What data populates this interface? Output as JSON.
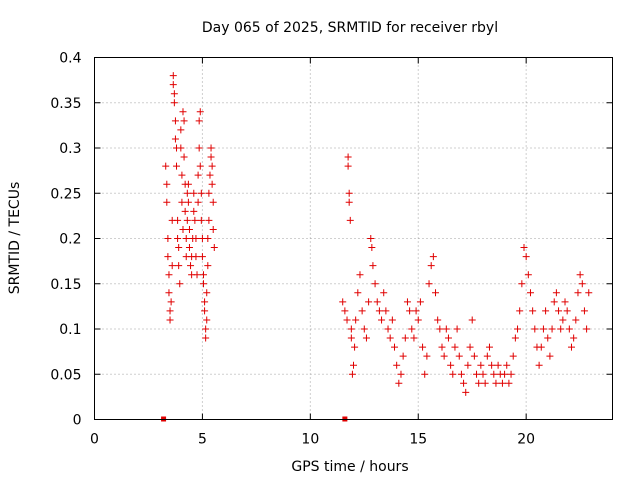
{
  "chart_data": {
    "type": "scatter",
    "title": "Day 065 of 2025, SRMTID for receiver rbyl",
    "xlabel": "GPS time / hours",
    "ylabel": "SRMTID / TECUs",
    "xlim": [
      0,
      24
    ],
    "ylim": [
      0,
      0.4
    ],
    "xticks": [
      0,
      5,
      10,
      15,
      20
    ],
    "yticks": [
      0,
      0.05,
      0.1,
      0.15,
      0.2,
      0.25,
      0.3,
      0.35,
      0.4
    ],
    "xtick_labels": [
      "0",
      "5",
      "10",
      "15",
      "20"
    ],
    "ytick_labels": [
      "0",
      "0.05",
      "0.1",
      "0.15",
      "0.2",
      "0.25",
      "0.3",
      "0.35",
      "0.4"
    ],
    "grid": true,
    "marker": "+",
    "marker_color": "#e00000",
    "series": [
      {
        "name": "",
        "points": [
          [
            3.3,
            0.28
          ],
          [
            3.35,
            0.26
          ],
          [
            3.35,
            0.24
          ],
          [
            3.4,
            0.2
          ],
          [
            3.4,
            0.18
          ],
          [
            3.45,
            0.16
          ],
          [
            3.45,
            0.14
          ],
          [
            3.5,
            0.12
          ],
          [
            3.5,
            0.11
          ],
          [
            3.55,
            0.13
          ],
          [
            3.6,
            0.17
          ],
          [
            3.6,
            0.22
          ],
          [
            3.65,
            0.38
          ],
          [
            3.65,
            0.37
          ],
          [
            3.7,
            0.36
          ],
          [
            3.7,
            0.35
          ],
          [
            3.75,
            0.33
          ],
          [
            3.75,
            0.31
          ],
          [
            3.8,
            0.3
          ],
          [
            3.8,
            0.28
          ],
          [
            3.85,
            0.22
          ],
          [
            3.85,
            0.2
          ],
          [
            3.9,
            0.19
          ],
          [
            3.9,
            0.17
          ],
          [
            3.95,
            0.15
          ],
          [
            4.0,
            0.32
          ],
          [
            4.0,
            0.3
          ],
          [
            4.05,
            0.27
          ],
          [
            4.05,
            0.24
          ],
          [
            4.1,
            0.21
          ],
          [
            4.1,
            0.34
          ],
          [
            4.15,
            0.33
          ],
          [
            4.15,
            0.29
          ],
          [
            4.2,
            0.26
          ],
          [
            4.2,
            0.23
          ],
          [
            4.25,
            0.2
          ],
          [
            4.25,
            0.18
          ],
          [
            4.3,
            0.22
          ],
          [
            4.3,
            0.25
          ],
          [
            4.35,
            0.26
          ],
          [
            4.35,
            0.24
          ],
          [
            4.4,
            0.21
          ],
          [
            4.4,
            0.19
          ],
          [
            4.45,
            0.17
          ],
          [
            4.5,
            0.16
          ],
          [
            4.5,
            0.18
          ],
          [
            4.55,
            0.2
          ],
          [
            4.6,
            0.23
          ],
          [
            4.6,
            0.25
          ],
          [
            4.65,
            0.22
          ],
          [
            4.7,
            0.2
          ],
          [
            4.7,
            0.18
          ],
          [
            4.75,
            0.16
          ],
          [
            4.8,
            0.24
          ],
          [
            4.8,
            0.27
          ],
          [
            4.85,
            0.3
          ],
          [
            4.85,
            0.33
          ],
          [
            4.9,
            0.34
          ],
          [
            4.9,
            0.28
          ],
          [
            4.95,
            0.25
          ],
          [
            4.95,
            0.22
          ],
          [
            5.0,
            0.2
          ],
          [
            5.0,
            0.18
          ],
          [
            5.05,
            0.16
          ],
          [
            5.05,
            0.15
          ],
          [
            5.1,
            0.13
          ],
          [
            5.1,
            0.12
          ],
          [
            5.15,
            0.1
          ],
          [
            5.15,
            0.09
          ],
          [
            5.2,
            0.11
          ],
          [
            5.2,
            0.14
          ],
          [
            5.25,
            0.17
          ],
          [
            5.25,
            0.2
          ],
          [
            5.3,
            0.22
          ],
          [
            5.3,
            0.25
          ],
          [
            5.35,
            0.27
          ],
          [
            5.4,
            0.29
          ],
          [
            5.4,
            0.3
          ],
          [
            5.45,
            0.28
          ],
          [
            5.45,
            0.26
          ],
          [
            5.5,
            0.24
          ],
          [
            5.5,
            0.21
          ],
          [
            5.55,
            0.19
          ],
          [
            11.5,
            0.13
          ],
          [
            11.6,
            0.12
          ],
          [
            11.7,
            0.11
          ],
          [
            11.75,
            0.29
          ],
          [
            11.75,
            0.28
          ],
          [
            11.8,
            0.25
          ],
          [
            11.8,
            0.24
          ],
          [
            11.85,
            0.22
          ],
          [
            11.9,
            0.1
          ],
          [
            11.9,
            0.09
          ],
          [
            11.95,
            0.05
          ],
          [
            12.0,
            0.06
          ],
          [
            12.05,
            0.08
          ],
          [
            12.1,
            0.11
          ],
          [
            12.2,
            0.14
          ],
          [
            12.3,
            0.16
          ],
          [
            12.4,
            0.12
          ],
          [
            12.5,
            0.1
          ],
          [
            12.6,
            0.09
          ],
          [
            12.7,
            0.13
          ],
          [
            12.8,
            0.2
          ],
          [
            12.85,
            0.19
          ],
          [
            12.9,
            0.17
          ],
          [
            13.0,
            0.15
          ],
          [
            13.1,
            0.13
          ],
          [
            13.2,
            0.12
          ],
          [
            13.3,
            0.11
          ],
          [
            13.4,
            0.14
          ],
          [
            13.5,
            0.12
          ],
          [
            13.6,
            0.1
          ],
          [
            13.7,
            0.09
          ],
          [
            13.8,
            0.11
          ],
          [
            13.9,
            0.08
          ],
          [
            14.0,
            0.06
          ],
          [
            14.1,
            0.04
          ],
          [
            14.2,
            0.05
          ],
          [
            14.3,
            0.07
          ],
          [
            14.4,
            0.09
          ],
          [
            14.5,
            0.13
          ],
          [
            14.6,
            0.12
          ],
          [
            14.7,
            0.1
          ],
          [
            14.8,
            0.09
          ],
          [
            14.9,
            0.12
          ],
          [
            15.0,
            0.11
          ],
          [
            15.1,
            0.13
          ],
          [
            15.2,
            0.08
          ],
          [
            15.3,
            0.05
          ],
          [
            15.4,
            0.07
          ],
          [
            15.5,
            0.15
          ],
          [
            15.6,
            0.17
          ],
          [
            15.7,
            0.18
          ],
          [
            15.8,
            0.14
          ],
          [
            15.9,
            0.11
          ],
          [
            16.0,
            0.1
          ],
          [
            16.1,
            0.08
          ],
          [
            16.2,
            0.07
          ],
          [
            16.3,
            0.1
          ],
          [
            16.4,
            0.09
          ],
          [
            16.5,
            0.06
          ],
          [
            16.6,
            0.05
          ],
          [
            16.7,
            0.08
          ],
          [
            16.8,
            0.1
          ],
          [
            16.9,
            0.07
          ],
          [
            17.0,
            0.05
          ],
          [
            17.1,
            0.04
          ],
          [
            17.2,
            0.03
          ],
          [
            17.3,
            0.06
          ],
          [
            17.4,
            0.08
          ],
          [
            17.5,
            0.11
          ],
          [
            17.6,
            0.07
          ],
          [
            17.7,
            0.05
          ],
          [
            17.8,
            0.04
          ],
          [
            17.9,
            0.06
          ],
          [
            18.0,
            0.05
          ],
          [
            18.1,
            0.04
          ],
          [
            18.2,
            0.07
          ],
          [
            18.3,
            0.08
          ],
          [
            18.4,
            0.06
          ],
          [
            18.5,
            0.05
          ],
          [
            18.6,
            0.04
          ],
          [
            18.7,
            0.06
          ],
          [
            18.8,
            0.05
          ],
          [
            18.9,
            0.04
          ],
          [
            19.0,
            0.05
          ],
          [
            19.1,
            0.06
          ],
          [
            19.2,
            0.04
          ],
          [
            19.3,
            0.05
          ],
          [
            19.4,
            0.07
          ],
          [
            19.5,
            0.09
          ],
          [
            19.6,
            0.1
          ],
          [
            19.7,
            0.12
          ],
          [
            19.8,
            0.15
          ],
          [
            19.9,
            0.19
          ],
          [
            20.0,
            0.18
          ],
          [
            20.1,
            0.16
          ],
          [
            20.2,
            0.14
          ],
          [
            20.3,
            0.12
          ],
          [
            20.4,
            0.1
          ],
          [
            20.5,
            0.08
          ],
          [
            20.6,
            0.06
          ],
          [
            20.7,
            0.08
          ],
          [
            20.8,
            0.1
          ],
          [
            20.9,
            0.12
          ],
          [
            21.0,
            0.09
          ],
          [
            21.1,
            0.07
          ],
          [
            21.2,
            0.1
          ],
          [
            21.3,
            0.13
          ],
          [
            21.4,
            0.14
          ],
          [
            21.5,
            0.12
          ],
          [
            21.6,
            0.1
          ],
          [
            21.7,
            0.11
          ],
          [
            21.8,
            0.13
          ],
          [
            21.9,
            0.12
          ],
          [
            22.0,
            0.1
          ],
          [
            22.1,
            0.08
          ],
          [
            22.2,
            0.09
          ],
          [
            22.3,
            0.11
          ],
          [
            22.4,
            0.14
          ],
          [
            22.5,
            0.16
          ],
          [
            22.6,
            0.15
          ],
          [
            22.7,
            0.12
          ],
          [
            22.8,
            0.1
          ],
          [
            22.9,
            0.14
          ]
        ]
      }
    ],
    "zero_markers": [
      [
        3.2,
        0
      ],
      [
        11.6,
        0
      ]
    ]
  }
}
